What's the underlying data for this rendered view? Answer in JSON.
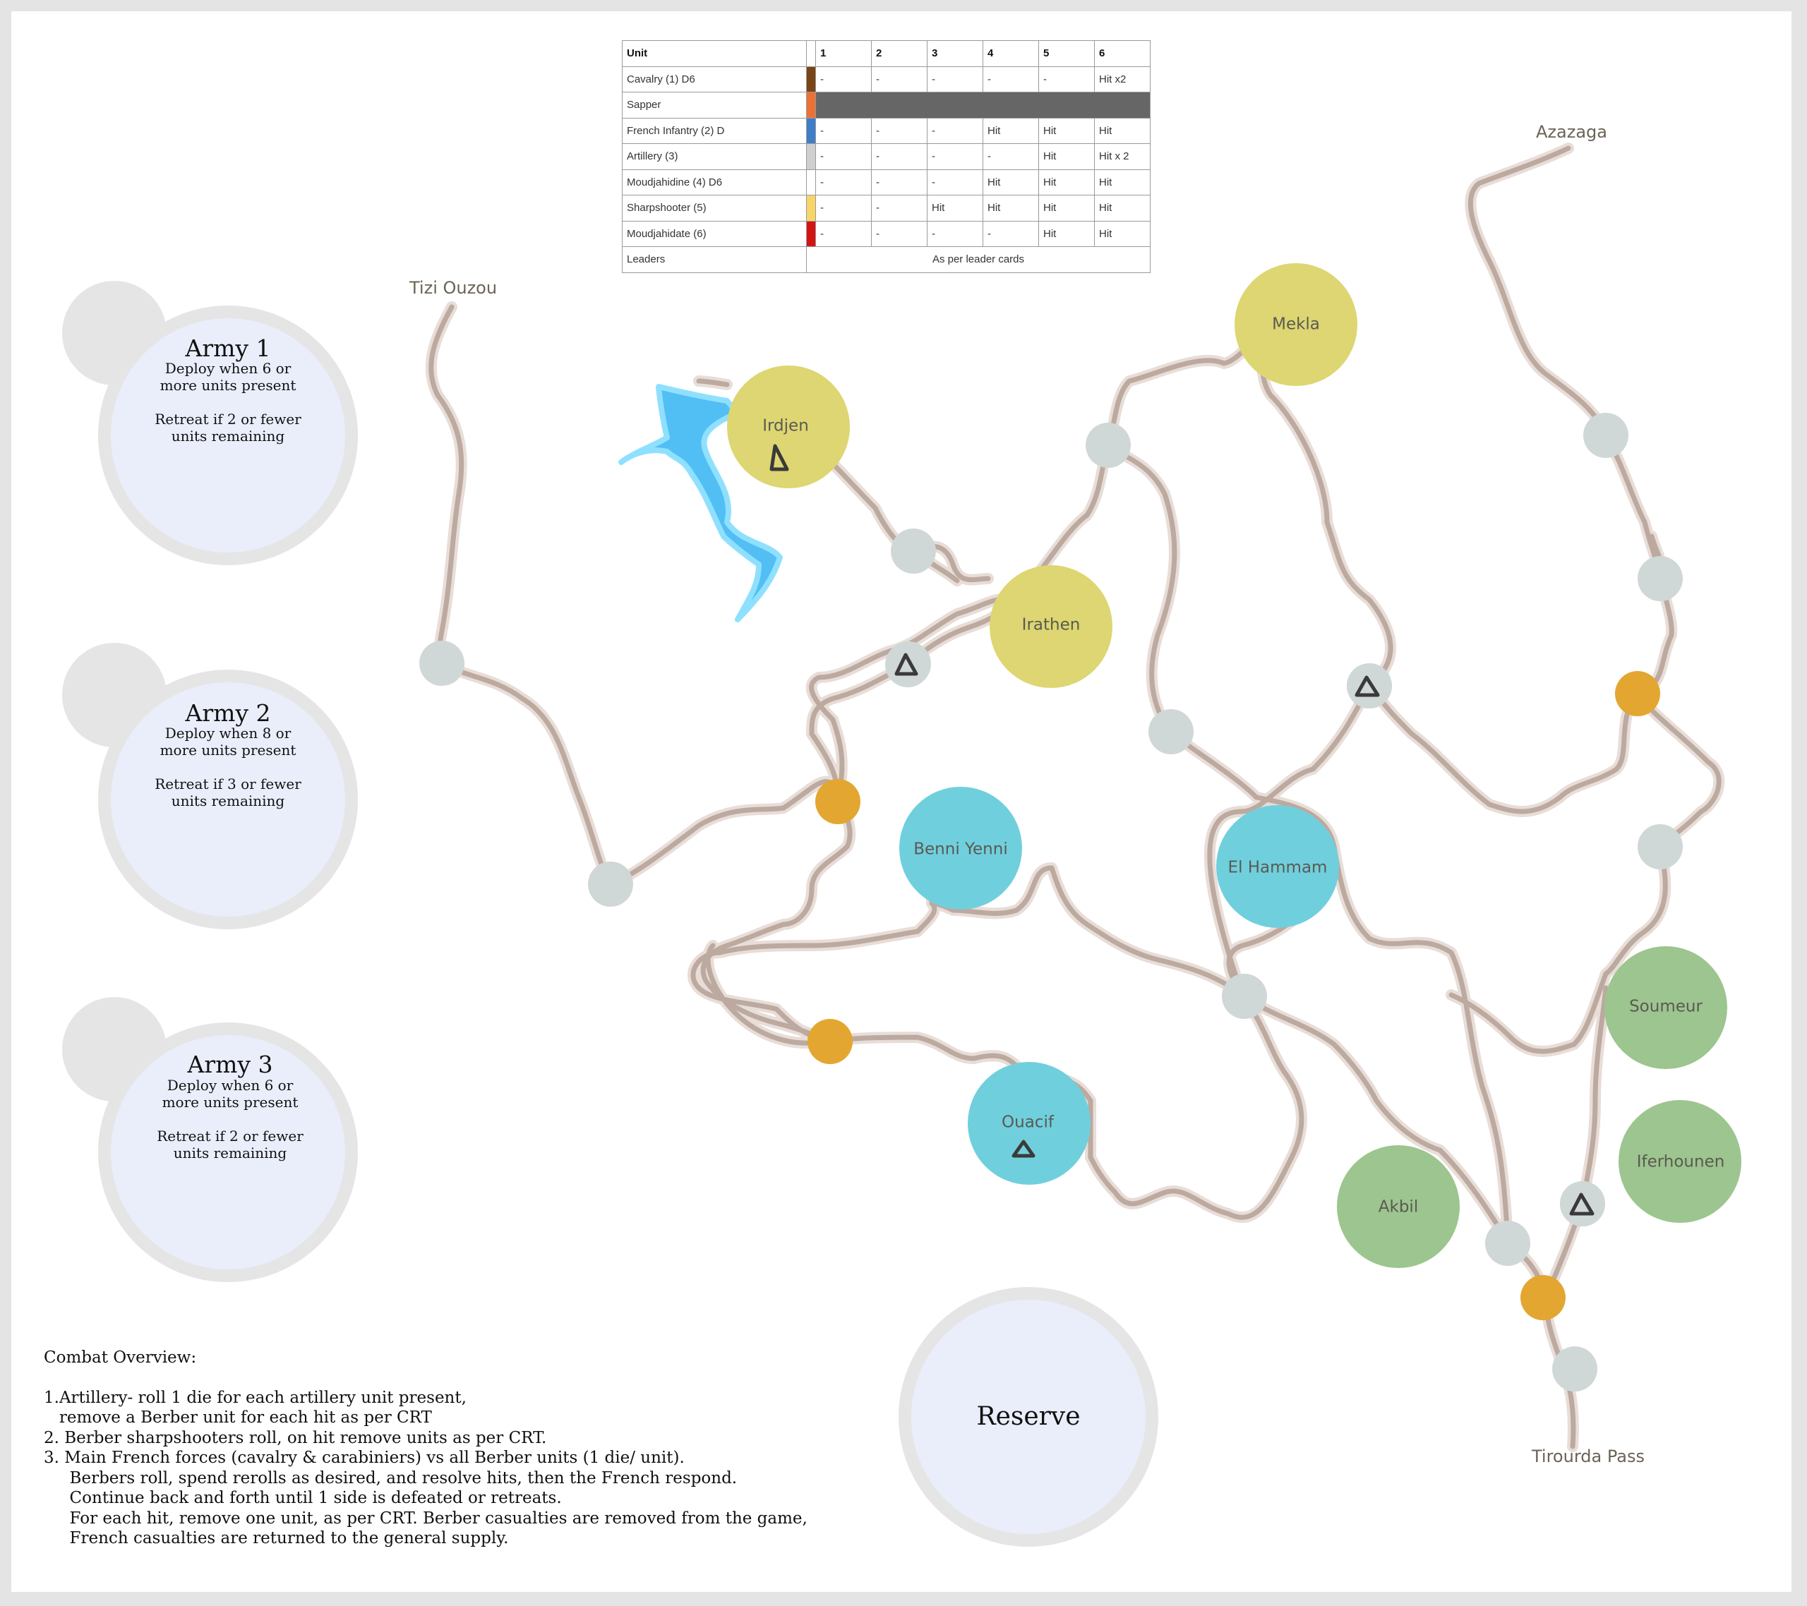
{
  "crt": {
    "header": [
      "Unit",
      "",
      "1",
      "2",
      "3",
      "4",
      "5",
      "6"
    ],
    "rows": [
      {
        "unit": "Cavalry (1) D6",
        "color": "#7b4416",
        "r": [
          "-",
          "-",
          "-",
          "-",
          "-",
          "Hit x2"
        ]
      },
      {
        "unit": "Sapper",
        "color": "#ec7134",
        "greyed": true
      },
      {
        "unit": "French Infantry (2) D",
        "color": "#3e7ec6",
        "r": [
          "-",
          "-",
          "-",
          "Hit",
          "Hit",
          "Hit"
        ]
      },
      {
        "unit": "Artillery (3)",
        "color": "#cfcfcf",
        "r": [
          "-",
          "-",
          "-",
          "-",
          "Hit",
          "Hit x 2"
        ]
      },
      {
        "unit": "Moudjahidine (4) D6",
        "color": "#ffffff",
        "r": [
          "-",
          "-",
          "-",
          "Hit",
          "Hit",
          "Hit"
        ]
      },
      {
        "unit": "Sharpshooter (5)",
        "color": "#f8d568",
        "r": [
          "-",
          "-",
          "Hit",
          "Hit",
          "Hit",
          "Hit"
        ]
      },
      {
        "unit": "Moudjahidate (6)",
        "color": "#d21414",
        "r": [
          "-",
          "-",
          "-",
          "-",
          "Hit",
          "Hit"
        ]
      }
    ],
    "leaders": {
      "unit": "Leaders",
      "text": "As per leader cards"
    }
  },
  "armies": [
    {
      "title": "Army 1",
      "lines": [
        "Deploy when 6 or",
        "more units present",
        "",
        "Retreat if 2 or fewer",
        "units remaining"
      ]
    },
    {
      "title": "Army 2",
      "lines": [
        "Deploy when 8 or",
        "more units present",
        "",
        "Retreat if 3 or fewer",
        "units remaining"
      ]
    },
    {
      "title": "Army 3",
      "lines": [
        "Deploy when 6 or",
        "more units present",
        "",
        "Retreat if 2 or fewer",
        "units remaining"
      ]
    }
  ],
  "reserve": "Reserve",
  "places": {
    "tizi_ouzou": "Tizi Ouzou",
    "azazaga": "Azazaga",
    "tirourda": "Tirourda Pass"
  },
  "towns": {
    "irdjen": "Irdjen",
    "mekla": "Mekla",
    "irathen": "Irathen",
    "benni_yenni": "Benni Yenni",
    "el_hammam": "El Hammam",
    "ouacif": "Ouacif",
    "soumeur": "Soumeur",
    "iferhounen": "Iferhounen",
    "akbil": "Akbil"
  },
  "colors": {
    "yellow_town": "#ddd672",
    "cyan_town": "#70cfdd",
    "green_town": "#9dc58f",
    "grey_node": "#d0d8d7",
    "orange_node": "#e3a630",
    "army_fill": "#eaeefb",
    "army_ring": "#e5e5e6",
    "road": "#bca9a0",
    "lake": "#51bff4"
  },
  "combat": {
    "title": "Combat Overview:",
    "lines": [
      "1.Artillery- roll 1 die for each artillery unit present,",
      "   remove a Berber unit for each hit as per CRT",
      "2. Berber sharpshooters roll, on hit remove units as per CRT.",
      "3. Main French forces (cavalry & carabiniers) vs all Berber units (1 die/ unit).",
      "     Berbers roll, spend rerolls as desired, and resolve hits, then the French respond.",
      "     Continue back and forth until 1 side is defeated or retreats.",
      "     For each hit, remove one unit, as per CRT. Berber casualties are removed from the game,",
      "     French casualties are returned to the general supply."
    ]
  }
}
